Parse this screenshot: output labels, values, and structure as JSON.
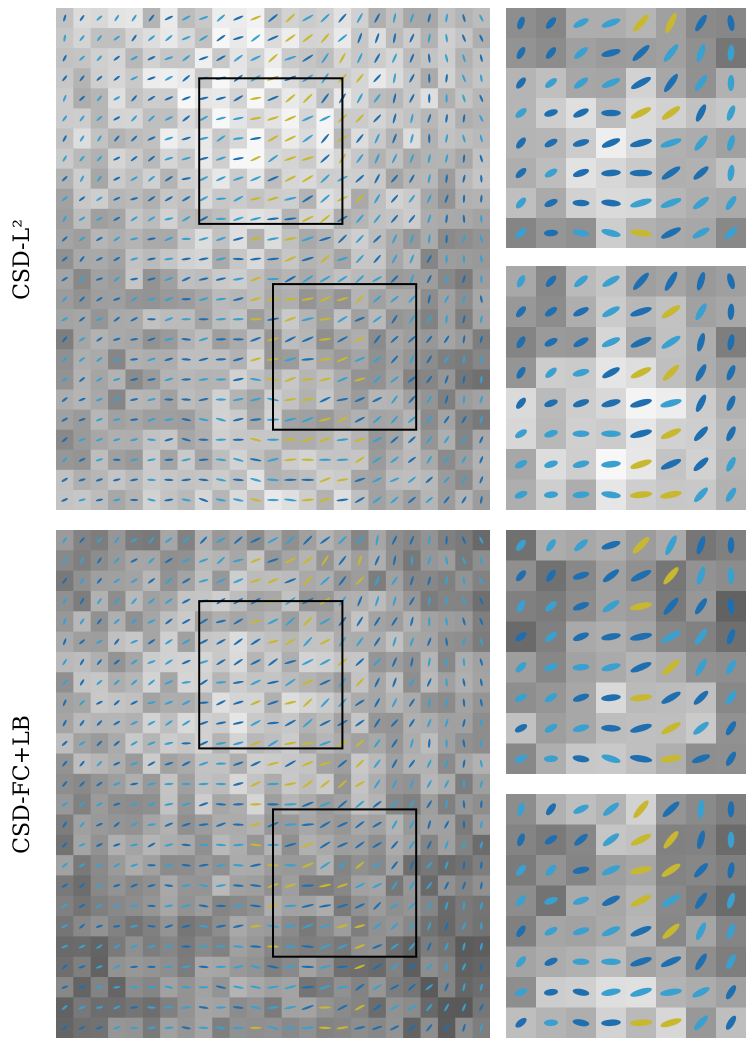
{
  "figure": {
    "rows": [
      {
        "id": "csd-l2",
        "label": "CSD-L²",
        "main_panel": {
          "grid": 25,
          "boxes": [
            "upper",
            "lower"
          ]
        },
        "zoom_panels": [
          {
            "id": "upper-zoom",
            "grid": 8
          },
          {
            "id": "lower-zoom",
            "grid": 8
          }
        ]
      },
      {
        "id": "csd-fc-lb",
        "label": "CSD-FC+LB",
        "main_panel": {
          "grid": 25,
          "boxes": [
            "upper",
            "lower"
          ]
        },
        "zoom_panels": [
          {
            "id": "upper-zoom",
            "grid": 8
          },
          {
            "id": "lower-zoom",
            "grid": 8
          }
        ]
      }
    ],
    "colors": {
      "glyph_main": "#1f6fb0",
      "glyph_light": "#3aa0d0",
      "glyph_warm": "#c8b830",
      "box_outline": "#000000"
    }
  }
}
